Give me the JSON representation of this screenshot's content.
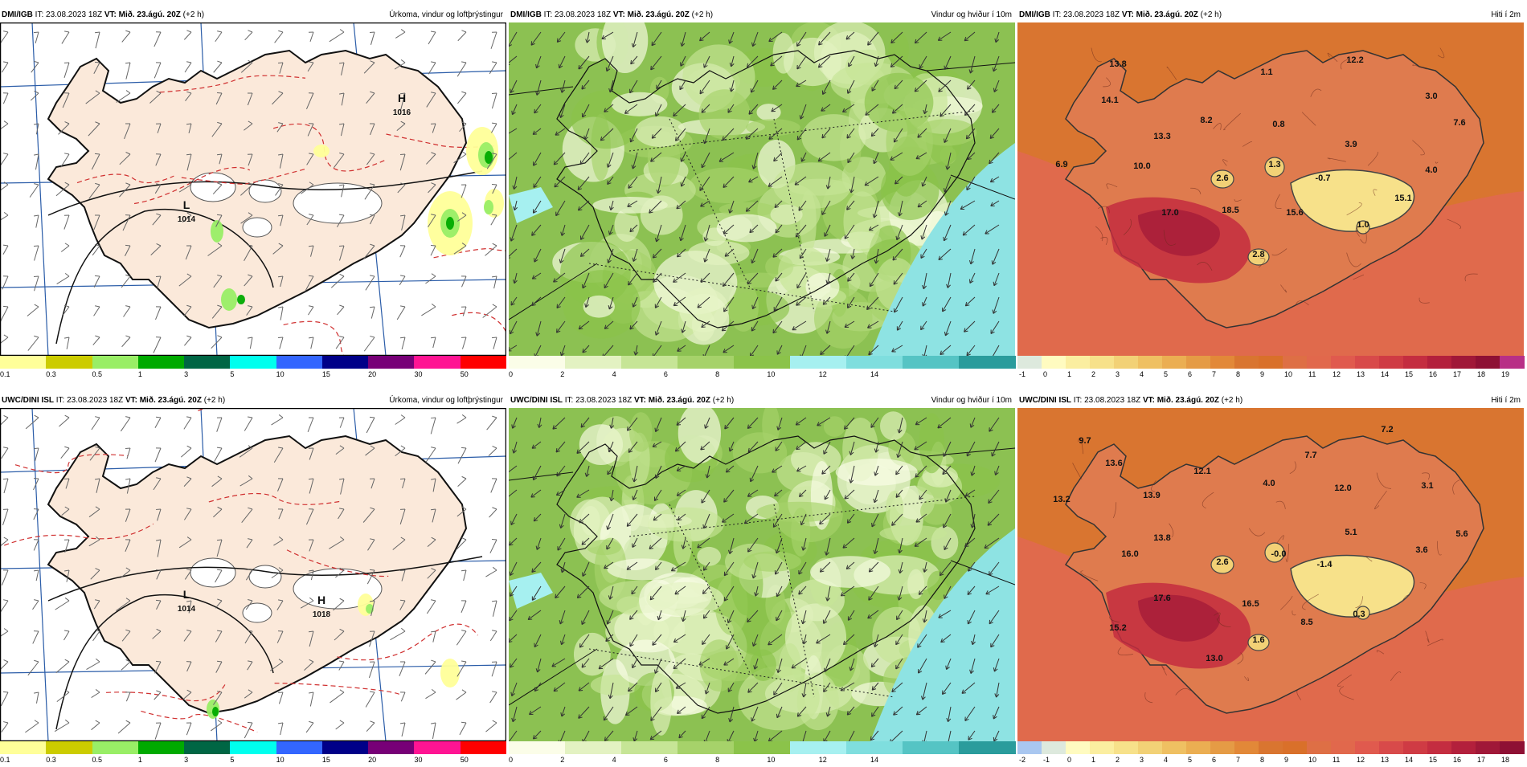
{
  "rows": [
    {
      "model_label": "DMI/IGB",
      "panels": [
        {
          "type": "precip",
          "header": {
            "model": "DMI/IGB",
            "it": "IT: 23.08.2023 18Z",
            "vt_label": "VT: Mið. 23.ágú. 20Z",
            "offset": "(+2 h)",
            "right": "Úrkoma, vindur og loftþrýstingur"
          },
          "pressure_centres": [
            {
              "letter": "H",
              "value": "1016"
            },
            {
              "letter": "L",
              "value": "1014"
            }
          ]
        },
        {
          "type": "wind",
          "header": {
            "model": "DMI/IGB",
            "it": "IT: 23.08.2023 18Z",
            "vt_label": "VT: Mið. 23.ágú. 20Z",
            "offset": "(+2 h)",
            "right": "Vindur og hviður í 10m"
          }
        },
        {
          "type": "temp",
          "header": {
            "model": "DMI/IGB",
            "it": "IT: 23.08.2023 18Z",
            "vt_label": "VT: Mið. 23.ágú. 20Z",
            "offset": "(+2 h)",
            "right": "Hiti í 2m"
          },
          "values": [
            "13.8",
            "12.2",
            "14.1",
            "1.1",
            "3.0",
            "8.2",
            "0.8",
            "7.6",
            "13.3",
            "3.9",
            "6.9",
            "10.0",
            "1.3",
            "-0.7",
            "4.0",
            "2.6",
            "15.1",
            "17.0",
            "18.5",
            "15.6",
            "1.0",
            "2.8"
          ]
        }
      ]
    },
    {
      "model_label": "UWC/DINI ISL",
      "panels": [
        {
          "type": "precip",
          "header": {
            "model": "UWC/DINI ISL",
            "it": "IT: 23.08.2023 18Z",
            "vt_label": "VT: Mið. 23.ágú. 20Z",
            "offset": "(+2 h)",
            "right": "Úrkoma, vindur og loftþrýstingur"
          },
          "pressure_centres": [
            {
              "letter": "H",
              "value": "1018"
            },
            {
              "letter": "L",
              "value": "1014"
            }
          ]
        },
        {
          "type": "wind",
          "header": {
            "model": "UWC/DINI ISL",
            "it": "IT: 23.08.2023 18Z",
            "vt_label": "VT: Mið. 23.ágú. 20Z",
            "offset": "(+2 h)",
            "right": "Vindur og hviður í 10m"
          }
        },
        {
          "type": "temp",
          "header": {
            "model": "UWC/DINI ISL",
            "it": "IT: 23.08.2023 18Z",
            "vt_label": "VT: Mið. 23.ágú. 20Z",
            "offset": "(+2 h)",
            "right": "Hiti í 2m"
          },
          "values": [
            "7.2",
            "9.7",
            "13.6",
            "7.7",
            "12.1",
            "4.0",
            "12.0",
            "3.1",
            "13.2",
            "13.9",
            "5.6",
            "13.8",
            "5.1",
            "3.6",
            "16.0",
            "2.6",
            "-0.0",
            "-1.4",
            "17.6",
            "16.5",
            "0.3",
            "8.5",
            "15.2",
            "1.6",
            "13.0"
          ]
        }
      ]
    }
  ],
  "legends": {
    "precip": {
      "labels": [
        "0.1",
        "0.3",
        "0.5",
        "1",
        "3",
        "5",
        "10",
        "15",
        "20",
        "30",
        "50"
      ],
      "colors": [
        "#ffff99",
        "#cccc00",
        "#99ee66",
        "#00aa00",
        "#006644",
        "#00ffee",
        "#3366ff",
        "#000088",
        "#770077",
        "#ff1493",
        "#ff0000"
      ]
    },
    "wind": {
      "labels": [
        "0",
        "2",
        "4",
        "6",
        "8",
        "10",
        "12",
        "14"
      ],
      "colors": [
        "#fbfde8",
        "#e3f2c2",
        "#c6e596",
        "#a6d26a",
        "#8bc34a",
        "#a6f0f0",
        "#7fdede",
        "#55c4c4",
        "#2a9c9c"
      ]
    },
    "temp_top": {
      "labels": [
        "-1",
        "0",
        "1",
        "2",
        "3",
        "4",
        "5",
        "6",
        "7",
        "8",
        "9",
        "10",
        "11",
        "12",
        "13",
        "14",
        "15",
        "16",
        "17",
        "18",
        "19"
      ],
      "colors": [
        "#dde9dd",
        "#fffbc0",
        "#fbeea0",
        "#f7e18a",
        "#f2d176",
        "#efc062",
        "#ebae52",
        "#e59b45",
        "#e28838",
        "#d97530",
        "#d9702a",
        "#de6f45",
        "#e1684c",
        "#e05a4e",
        "#d84a4a",
        "#cf3b44",
        "#c42d40",
        "#b3203c",
        "#a01838",
        "#8e1034",
        "#b82f86"
      ]
    },
    "temp_bottom": {
      "labels": [
        "-2",
        "-1",
        "0",
        "1",
        "2",
        "3",
        "4",
        "5",
        "6",
        "7",
        "8",
        "9",
        "10",
        "11",
        "12",
        "13",
        "14",
        "15",
        "16",
        "17",
        "18"
      ],
      "colors": [
        "#a9c7f0",
        "#dde9dd",
        "#fffbc0",
        "#fbeea0",
        "#f7e18a",
        "#f2d176",
        "#efc062",
        "#ebae52",
        "#e59b45",
        "#e28838",
        "#d97530",
        "#d9702a",
        "#de6f45",
        "#e1684c",
        "#e05a4e",
        "#d84a4a",
        "#cf3b44",
        "#c42d40",
        "#b3203c",
        "#a01838",
        "#8e1034"
      ]
    }
  }
}
